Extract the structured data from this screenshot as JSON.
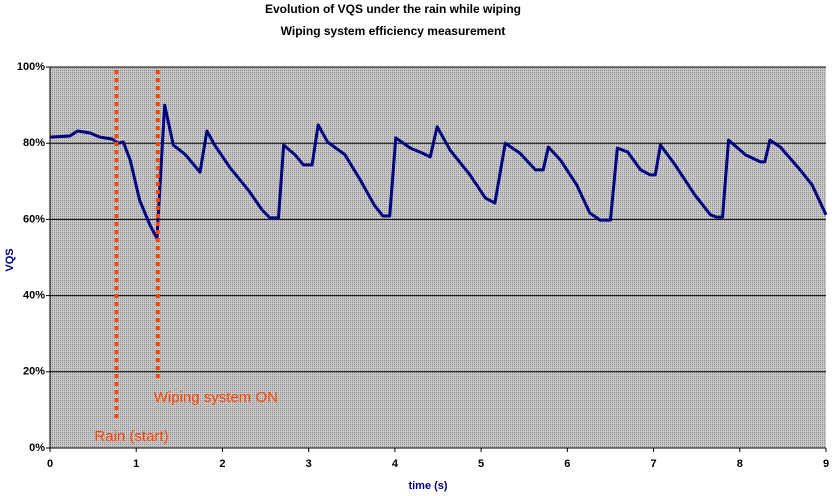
{
  "chart_data": {
    "type": "line",
    "title": "Evolution of VQS under the rain while wiping",
    "subtitle": "Wiping system efficiency measurement",
    "x_label": "time (s)",
    "y_label": "VQS",
    "color": "#000080",
    "grid": true,
    "xlim": [
      0,
      9
    ],
    "xticks": [
      0,
      1,
      2,
      3,
      4,
      5,
      6,
      7,
      8,
      9
    ],
    "ylim": [
      0,
      100
    ],
    "yticks": [
      {
        "value": 0,
        "label": "0%"
      },
      {
        "value": 20,
        "label": "20%"
      },
      {
        "value": 40,
        "label": "40%"
      },
      {
        "value": 60,
        "label": "60%"
      },
      {
        "value": 80,
        "label": "80%"
      },
      {
        "value": 100,
        "label": "100%"
      }
    ],
    "x": [
      0,
      0.23,
      0.32,
      0.46,
      0.58,
      0.72,
      0.79,
      0.85,
      0.93,
      1.04,
      1.16,
      1.24,
      1.33,
      1.43,
      1.57,
      1.74,
      1.82,
      1.91,
      2.09,
      2.3,
      2.46,
      2.55,
      2.65,
      2.71,
      2.84,
      2.94,
      3.04,
      3.11,
      3.22,
      3.42,
      3.6,
      3.76,
      3.86,
      3.94,
      4.01,
      4.18,
      4.32,
      4.41,
      4.49,
      4.64,
      4.87,
      5.05,
      5.16,
      5.28,
      5.45,
      5.63,
      5.72,
      5.78,
      5.92,
      6.11,
      6.26,
      6.38,
      6.5,
      6.58,
      6.7,
      6.85,
      6.96,
      7.02,
      7.08,
      7.25,
      7.48,
      7.66,
      7.73,
      7.8,
      7.87,
      8.07,
      8.24,
      8.29,
      8.35,
      8.47,
      8.7,
      8.84,
      9
    ],
    "values": [
      81.6,
      81.9,
      83.2,
      82.7,
      81.6,
      81.1,
      80,
      80.3,
      75.6,
      65,
      58.5,
      55,
      90,
      79.5,
      77,
      72.4,
      83.2,
      79.5,
      73.5,
      67.7,
      62.5,
      60.4,
      60.4,
      79.5,
      77,
      74.3,
      74.3,
      84.8,
      80.3,
      77,
      70.3,
      63.8,
      60.9,
      60.9,
      81.4,
      78.7,
      77.4,
      76.4,
      84.3,
      78.2,
      71.7,
      65.6,
      64.3,
      80,
      77.4,
      73,
      73,
      79,
      75.6,
      69,
      61.7,
      59.8,
      59.8,
      78.7,
      77.7,
      73,
      71.7,
      71.7,
      79.5,
      74.3,
      66.4,
      61.2,
      60.6,
      60.6,
      80.8,
      76.9,
      75.1,
      75.1,
      80.8,
      79,
      73,
      69,
      61.2
    ],
    "annotations": [
      {
        "text": "Rain (start)",
        "x": 0.77,
        "color": "#ff4500"
      },
      {
        "text": "Wiping system ON",
        "x": 1.25,
        "color": "#ff4500"
      }
    ]
  }
}
